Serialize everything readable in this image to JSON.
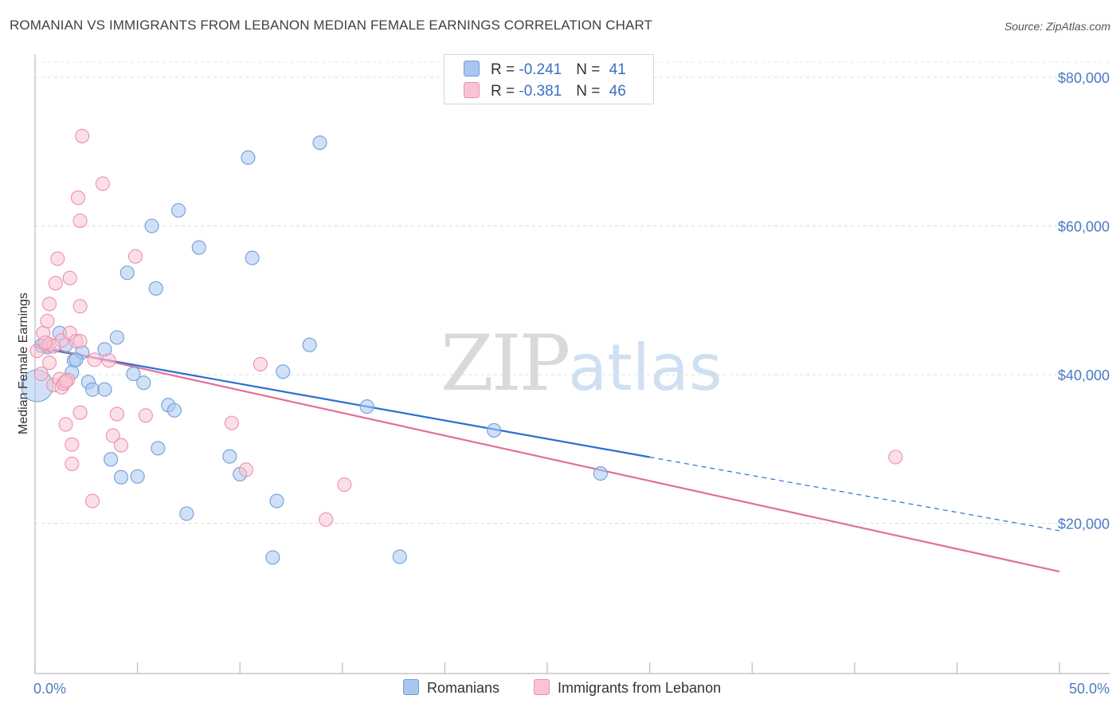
{
  "header": {
    "title": "ROMANIAN VS IMMIGRANTS FROM LEBANON MEDIAN FEMALE EARNINGS CORRELATION CHART",
    "source": "Source: ZipAtlas.com"
  },
  "watermark": {
    "zip": "ZIP",
    "atlas": "atlas"
  },
  "legend": {
    "rows": [
      {
        "r_label": "R = ",
        "r_value": "-0.241",
        "n_label": "N = ",
        "n_value": "41",
        "color": "#a9c6ee",
        "border": "#6f9fdc"
      },
      {
        "r_label": "R = ",
        "r_value": "-0.381",
        "n_label": "N = ",
        "n_value": "46",
        "color": "#f8c4d4",
        "border": "#ee8fae"
      }
    ]
  },
  "bottom_legend": {
    "romanians": "Romanians",
    "lebanon": "Immigrants from Lebanon"
  },
  "chart_data": {
    "type": "scatter",
    "title": "ROMANIAN VS IMMIGRANTS FROM LEBANON MEDIAN FEMALE EARNINGS CORRELATION CHART",
    "ylabel": "Median Female Earnings",
    "xlabel": "",
    "x_unit": "percent",
    "xlim": [
      0,
      50
    ],
    "ylim": [
      0,
      82000
    ],
    "x_tick_labels": [
      {
        "value": 0,
        "label": "0.0%"
      },
      {
        "value": 50,
        "label": "50.0%"
      }
    ],
    "y_tick_labels": [
      {
        "value": 20000,
        "label": "$20,000"
      },
      {
        "value": 40000,
        "label": "$40,000"
      },
      {
        "value": 60000,
        "label": "$60,000"
      },
      {
        "value": 80000,
        "label": "$80,000"
      }
    ],
    "grid": true,
    "legend_position": "top-center",
    "series": [
      {
        "name": "Romanians",
        "color": "#6f9fdc",
        "fill": "#a9c6ee",
        "trend": {
          "x_start": 0,
          "y_start": 43700,
          "x_end_solid": 30,
          "y_end_solid": 28900,
          "x_end_dashed": 50,
          "y_end_dashed": 19000
        },
        "points": [
          [
            0.1,
            38500
          ],
          [
            0.6,
            43700
          ],
          [
            1.2,
            45600
          ],
          [
            1.5,
            44000
          ],
          [
            1.9,
            41900
          ],
          [
            2.3,
            43000
          ],
          [
            1.8,
            40300
          ],
          [
            2.6,
            39000
          ],
          [
            2.8,
            38000
          ],
          [
            3.4,
            43400
          ],
          [
            3.4,
            38000
          ],
          [
            3.7,
            28600
          ],
          [
            4.0,
            45000
          ],
          [
            4.2,
            26200
          ],
          [
            4.5,
            53700
          ],
          [
            4.8,
            40100
          ],
          [
            5.0,
            26300
          ],
          [
            5.3,
            38900
          ],
          [
            5.7,
            60000
          ],
          [
            5.9,
            51600
          ],
          [
            6.0,
            30100
          ],
          [
            6.5,
            35900
          ],
          [
            6.8,
            35200
          ],
          [
            7.0,
            62100
          ],
          [
            7.4,
            21300
          ],
          [
            8.0,
            57100
          ],
          [
            9.5,
            29000
          ],
          [
            10.0,
            26600
          ],
          [
            10.4,
            69200
          ],
          [
            10.6,
            55700
          ],
          [
            11.6,
            15400
          ],
          [
            11.8,
            23000
          ],
          [
            12.1,
            40400
          ],
          [
            13.4,
            44000
          ],
          [
            13.9,
            71200
          ],
          [
            16.2,
            35700
          ],
          [
            17.8,
            15500
          ],
          [
            22.4,
            32500
          ],
          [
            27.6,
            26700
          ],
          [
            0.3,
            43900
          ],
          [
            2.0,
            42000
          ]
        ]
      },
      {
        "name": "Immigrants from Lebanon",
        "color": "#ee8fae",
        "fill": "#f8c4d4",
        "trend": {
          "x_start": 0,
          "y_start": 44000,
          "x_end": 50,
          "y_end": 13500
        },
        "points": [
          [
            0.1,
            43200
          ],
          [
            0.3,
            40100
          ],
          [
            0.4,
            45600
          ],
          [
            0.6,
            47200
          ],
          [
            0.6,
            43900
          ],
          [
            0.7,
            41600
          ],
          [
            0.7,
            44100
          ],
          [
            0.7,
            49500
          ],
          [
            0.9,
            38600
          ],
          [
            1.0,
            52300
          ],
          [
            1.1,
            55600
          ],
          [
            1.2,
            39400
          ],
          [
            1.3,
            38300
          ],
          [
            1.3,
            44600
          ],
          [
            1.4,
            38800
          ],
          [
            1.5,
            33300
          ],
          [
            1.6,
            39300
          ],
          [
            1.7,
            45600
          ],
          [
            1.7,
            53000
          ],
          [
            1.8,
            30600
          ],
          [
            1.8,
            28000
          ],
          [
            2.0,
            44500
          ],
          [
            2.1,
            63800
          ],
          [
            2.2,
            34900
          ],
          [
            2.2,
            44500
          ],
          [
            2.2,
            49200
          ],
          [
            2.2,
            60700
          ],
          [
            2.3,
            72100
          ],
          [
            2.8,
            23000
          ],
          [
            2.9,
            42000
          ],
          [
            3.3,
            65700
          ],
          [
            3.6,
            41900
          ],
          [
            3.8,
            31800
          ],
          [
            4.0,
            34700
          ],
          [
            4.2,
            30500
          ],
          [
            4.9,
            55900
          ],
          [
            5.4,
            34500
          ],
          [
            9.6,
            33500
          ],
          [
            10.3,
            27200
          ],
          [
            11.0,
            41400
          ],
          [
            14.2,
            20500
          ],
          [
            15.1,
            25200
          ],
          [
            42.0,
            28900
          ],
          [
            0.9,
            43800
          ],
          [
            1.5,
            39100
          ],
          [
            0.5,
            44300
          ]
        ]
      }
    ]
  }
}
